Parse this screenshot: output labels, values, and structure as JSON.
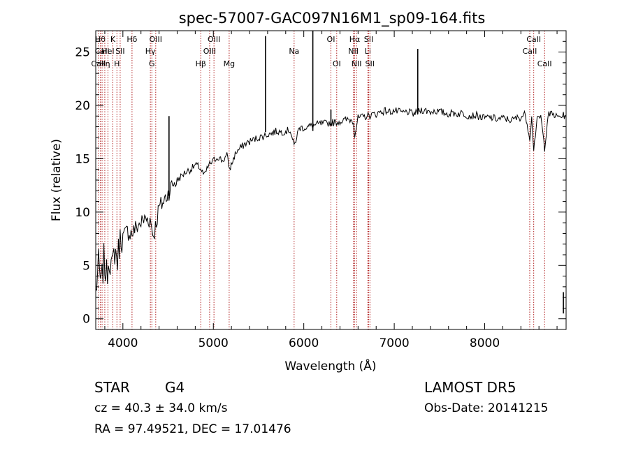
{
  "chart_data": {
    "type": "line",
    "title": "spec-57007-GAC097N16M1_sp09-164.fits",
    "xlabel": "Wavelength (Å)",
    "ylabel": "Flux (relative)",
    "xlim": [
      3700,
      8900
    ],
    "ylim": [
      -1,
      27
    ],
    "x_ticks": [
      4000,
      5000,
      6000,
      7000,
      8000
    ],
    "y_ticks": [
      0,
      5,
      10,
      15,
      20,
      25
    ],
    "grid": false,
    "line_color": "#000000",
    "marker_color": "#b22222",
    "spectrum": {
      "name": "",
      "points": [
        [
          3700,
          2.5
        ],
        [
          3730,
          5.0
        ],
        [
          3760,
          3.0
        ],
        [
          3790,
          5.5
        ],
        [
          3820,
          4.0
        ],
        [
          3850,
          6.0
        ],
        [
          3880,
          4.5
        ],
        [
          3910,
          6.5
        ],
        [
          3940,
          5.5
        ],
        [
          3960,
          7.0
        ],
        [
          3980,
          7.8
        ],
        [
          4000,
          7.6
        ],
        [
          4050,
          8.2
        ],
        [
          4100,
          8.0
        ],
        [
          4150,
          8.6
        ],
        [
          4200,
          9.0
        ],
        [
          4250,
          9.4
        ],
        [
          4300,
          9.3
        ],
        [
          4340,
          7.8
        ],
        [
          4400,
          10.4
        ],
        [
          4450,
          11.0
        ],
        [
          4500,
          11.8
        ],
        [
          4550,
          12.6
        ],
        [
          4600,
          13.0
        ],
        [
          4650,
          13.4
        ],
        [
          4700,
          13.8
        ],
        [
          4750,
          14.0
        ],
        [
          4800,
          14.4
        ],
        [
          4850,
          14.2
        ],
        [
          4900,
          13.4
        ],
        [
          4950,
          14.4
        ],
        [
          5000,
          14.8
        ],
        [
          5050,
          15.2
        ],
        [
          5100,
          14.8
        ],
        [
          5150,
          15.3
        ],
        [
          5180,
          14.0
        ],
        [
          5250,
          15.6
        ],
        [
          5300,
          16.0
        ],
        [
          5350,
          16.4
        ],
        [
          5400,
          16.6
        ],
        [
          5450,
          16.8
        ],
        [
          5500,
          17.0
        ],
        [
          5550,
          17.1
        ],
        [
          5600,
          17.3
        ],
        [
          5650,
          17.4
        ],
        [
          5700,
          17.6
        ],
        [
          5750,
          17.5
        ],
        [
          5800,
          17.6
        ],
        [
          5850,
          17.7
        ],
        [
          5893,
          16.2
        ],
        [
          5950,
          17.9
        ],
        [
          6000,
          17.9
        ],
        [
          6050,
          18.0
        ],
        [
          6100,
          18.1
        ],
        [
          6150,
          18.2
        ],
        [
          6200,
          18.3
        ],
        [
          6250,
          18.3
        ],
        [
          6300,
          18.4
        ],
        [
          6350,
          18.4
        ],
        [
          6400,
          18.5
        ],
        [
          6450,
          18.6
        ],
        [
          6500,
          18.7
        ],
        [
          6550,
          18.5
        ],
        [
          6563,
          17.2
        ],
        [
          6600,
          18.8
        ],
        [
          6650,
          18.9
        ],
        [
          6700,
          19.0
        ],
        [
          6750,
          19.1
        ],
        [
          6800,
          19.2
        ],
        [
          6850,
          19.4
        ],
        [
          6900,
          19.5
        ],
        [
          6950,
          19.4
        ],
        [
          7000,
          19.5
        ],
        [
          7050,
          19.4
        ],
        [
          7100,
          19.3
        ],
        [
          7150,
          19.4
        ],
        [
          7200,
          19.2
        ],
        [
          7250,
          19.3
        ],
        [
          7300,
          19.6
        ],
        [
          7350,
          19.5
        ],
        [
          7400,
          19.4
        ],
        [
          7450,
          19.5
        ],
        [
          7500,
          19.4
        ],
        [
          7550,
          19.3
        ],
        [
          7600,
          19.2
        ],
        [
          7650,
          19.3
        ],
        [
          7700,
          19.2
        ],
        [
          7750,
          19.3
        ],
        [
          7800,
          19.1
        ],
        [
          7850,
          19.0
        ],
        [
          7900,
          19.1
        ],
        [
          7950,
          18.9
        ],
        [
          8000,
          18.8
        ],
        [
          8050,
          18.9
        ],
        [
          8100,
          18.8
        ],
        [
          8150,
          18.7
        ],
        [
          8200,
          18.8
        ],
        [
          8250,
          18.7
        ],
        [
          8300,
          18.6
        ],
        [
          8350,
          18.8
        ],
        [
          8400,
          18.9
        ],
        [
          8450,
          19.2
        ],
        [
          8498,
          17.0
        ],
        [
          8520,
          18.8
        ],
        [
          8542,
          16.0
        ],
        [
          8580,
          18.6
        ],
        [
          8620,
          19.0
        ],
        [
          8662,
          16.0
        ],
        [
          8700,
          19.1
        ],
        [
          8750,
          19.2
        ],
        [
          8800,
          18.9
        ],
        [
          8850,
          19.0
        ],
        [
          8900,
          19.1
        ]
      ],
      "spikes": [
        [
          4510,
          11.5,
          19.0
        ],
        [
          5577,
          17.5,
          26.5
        ],
        [
          6100,
          17.6,
          27.0
        ],
        [
          6300,
          18.1,
          19.6
        ],
        [
          7260,
          19.2,
          25.3
        ],
        [
          8870,
          0.5,
          2.5
        ]
      ]
    },
    "line_markers": [
      {
        "x": 3730,
        "label": "CaII",
        "row": 2
      },
      {
        "x": 3750,
        "label": "Hθ",
        "row": 0
      },
      {
        "x": 3770,
        "label": "CaII",
        "row": 1
      },
      {
        "x": 3800,
        "label": "Hη",
        "row": 2
      },
      {
        "x": 3835,
        "label": "HeI",
        "row": 1
      },
      {
        "x": 3889,
        "label": "K",
        "row": 0
      },
      {
        "x": 3934,
        "label": "H",
        "row": 2
      },
      {
        "x": 3970,
        "label": "SII",
        "row": 1
      },
      {
        "x": 4101,
        "label": "Hδ",
        "row": 0
      },
      {
        "x": 4304,
        "label": "Hγ",
        "row": 1
      },
      {
        "x": 4320,
        "label": "G",
        "row": 2
      },
      {
        "x": 4363,
        "label": "OIII",
        "row": 0
      },
      {
        "x": 4861,
        "label": "Hβ",
        "row": 2
      },
      {
        "x": 4959,
        "label": "OIII",
        "row": 1
      },
      {
        "x": 5007,
        "label": "OIII",
        "row": 0
      },
      {
        "x": 5175,
        "label": "Mg",
        "row": 2
      },
      {
        "x": 5893,
        "label": "Na",
        "row": 1
      },
      {
        "x": 6300,
        "label": "OI",
        "row": 0
      },
      {
        "x": 6364,
        "label": "OI",
        "row": 2
      },
      {
        "x": 6548,
        "label": "NII",
        "row": 1
      },
      {
        "x": 6563,
        "label": "Hα",
        "row": 0
      },
      {
        "x": 6583,
        "label": "NII",
        "row": 2
      },
      {
        "x": 6708,
        "label": "Li",
        "row": 1
      },
      {
        "x": 6717,
        "label": "SII",
        "row": 0
      },
      {
        "x": 6731,
        "label": "SII",
        "row": 2
      },
      {
        "x": 8498,
        "label": "CaII",
        "row": 1
      },
      {
        "x": 8542,
        "label": "CaII",
        "row": 0
      },
      {
        "x": 8662,
        "label": "CaII",
        "row": 2
      }
    ]
  },
  "info": {
    "object_class": "STAR",
    "subclass": "G4",
    "redshift_line": "cz = 40.3 ± 34.0 km/s",
    "coords_line": "RA =  97.49521, DEC =  17.01476",
    "survey": "LAMOST  DR5",
    "obs_date": "Obs-Date: 20141215"
  }
}
